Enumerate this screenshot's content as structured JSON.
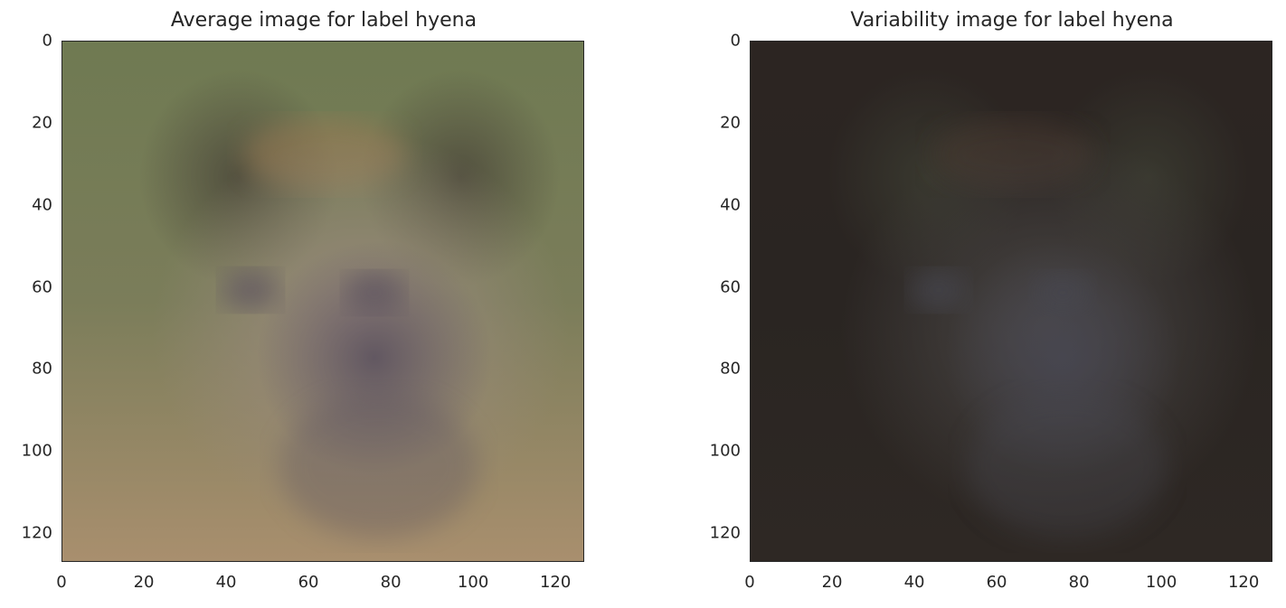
{
  "chart_data": [
    {
      "type": "image",
      "title": "Average image for label hyena",
      "xlim": [
        0,
        127
      ],
      "ylim": [
        127,
        0
      ],
      "x_ticks": [
        0,
        20,
        40,
        60,
        80,
        100,
        120
      ],
      "y_ticks": [
        0,
        20,
        40,
        60,
        80,
        100,
        120
      ],
      "colors": {
        "top": "#6f7a52",
        "edge": "#7b7d5a",
        "bottom": "#a98f6e",
        "face": "#9c8b80",
        "muzzle": "#5f5560",
        "ear": "#4e4b3c"
      }
    },
    {
      "type": "image",
      "title": "Variability image for label hyena",
      "xlim": [
        0,
        127
      ],
      "ylim": [
        127,
        0
      ],
      "x_ticks": [
        0,
        20,
        40,
        60,
        80,
        100,
        120
      ],
      "y_ticks": [
        0,
        20,
        40,
        60,
        80,
        100,
        120
      ],
      "colors": {
        "top": "#2c2522",
        "edge": "#2a2522",
        "bottom": "#2e2824",
        "face": "#4a4746",
        "muzzle": "#474650",
        "ear": "#3a3a30"
      }
    }
  ]
}
